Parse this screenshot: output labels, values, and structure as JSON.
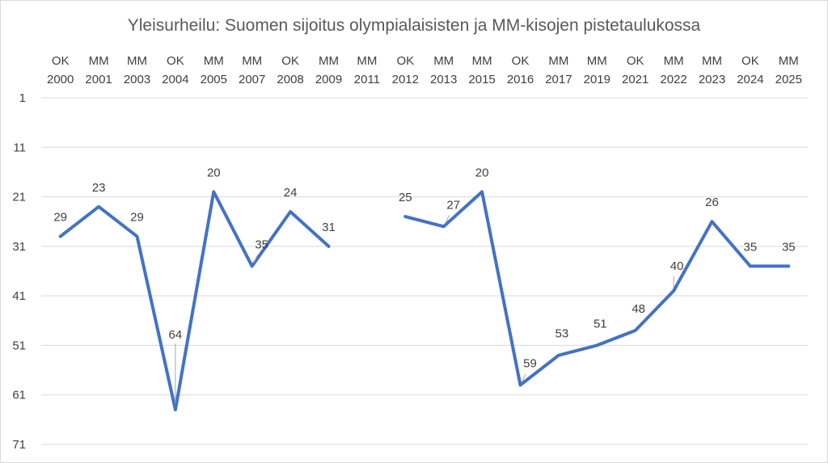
{
  "chart_data": {
    "type": "line",
    "title": "Yleisurheilu: Suomen sijoitus olympialaisisten ja MM-kisojen pistetaulukossa",
    "categories": [
      [
        "OK",
        "2000"
      ],
      [
        "MM",
        "2001"
      ],
      [
        "MM",
        "2003"
      ],
      [
        "OK",
        "2004"
      ],
      [
        "MM",
        "2005"
      ],
      [
        "MM",
        "2007"
      ],
      [
        "OK",
        "2008"
      ],
      [
        "MM",
        "2009"
      ],
      [
        "MM",
        "2011"
      ],
      [
        "OK",
        "2012"
      ],
      [
        "MM",
        "2013"
      ],
      [
        "MM",
        "2015"
      ],
      [
        "OK",
        "2016"
      ],
      [
        "MM",
        "2017"
      ],
      [
        "MM",
        "2019"
      ],
      [
        "OK",
        "2021"
      ],
      [
        "MM",
        "2022"
      ],
      [
        "MM",
        "2023"
      ],
      [
        "OK",
        "2024"
      ],
      [
        "MM",
        "2025"
      ]
    ],
    "series": [
      {
        "values": [
          29,
          23,
          29,
          64,
          20,
          35,
          24,
          31,
          null,
          25,
          27,
          20,
          59,
          53,
          51,
          48,
          40,
          26,
          35,
          35
        ]
      }
    ],
    "ylim": [
      1,
      71
    ],
    "y_reversed": true,
    "y_ticks": [
      1,
      11,
      21,
      31,
      41,
      51,
      61,
      71
    ],
    "x_axis_position": "top",
    "grid": true,
    "legend": "none",
    "line_color": "#4472c4"
  }
}
